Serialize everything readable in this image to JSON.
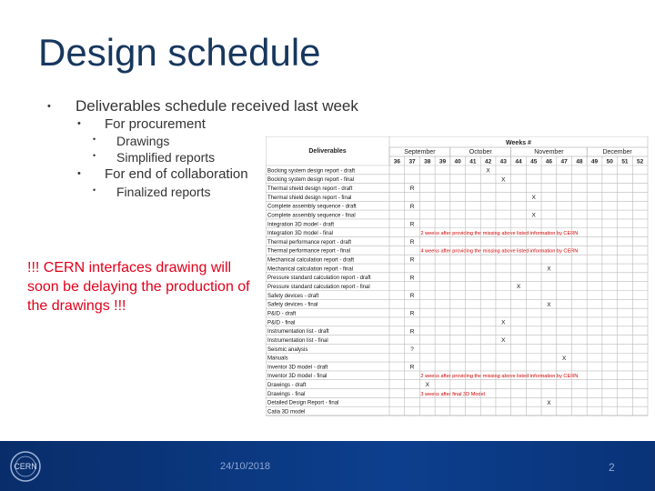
{
  "title": "Design schedule",
  "bullets": [
    {
      "text": "Deliverables schedule received last week",
      "children": [
        {
          "text": "For procurement",
          "children": [
            {
              "text": "Drawings"
            },
            {
              "text": "Simplified reports"
            }
          ]
        },
        {
          "text": "For end of collaboration",
          "children": [
            {
              "text": "Finalized reports"
            }
          ]
        }
      ]
    }
  ],
  "warning": "!!! CERN interfaces drawing will soon be delaying the production of the drawings !!!",
  "table": {
    "weeks_label": "Weeks #",
    "deliverables_label": "Deliverables",
    "months": [
      {
        "label": "September",
        "weeks": 4
      },
      {
        "label": "October",
        "weeks": 4
      },
      {
        "label": "November",
        "weeks": 5
      },
      {
        "label": "December",
        "weeks": 4
      }
    ],
    "weeks": [
      36,
      37,
      38,
      39,
      40,
      41,
      42,
      43,
      44,
      45,
      46,
      47,
      48,
      49,
      50,
      51,
      52
    ],
    "rows": [
      {
        "name": "Bocking system design report - draft",
        "mark": "X",
        "week": 42
      },
      {
        "name": "Bocking system design report - final",
        "mark": "X",
        "week": 43
      },
      {
        "name": "Thermal shield design report - draft",
        "mark": "R",
        "week": 37
      },
      {
        "name": "Thermal shield design report - final",
        "mark": "X",
        "week": 45
      },
      {
        "name": "Complete assembly sequence - draft",
        "mark": "R",
        "week": 37
      },
      {
        "name": "Complete assembly sequence - final",
        "mark": "X",
        "week": 45
      },
      {
        "name": "Integration 3D model - draft",
        "mark": "R",
        "week": 37
      },
      {
        "name": "Integration 3D model - final",
        "note": "2 weeks after providing the missing above listed information by CERN"
      },
      {
        "name": "Thermal performance report - draft",
        "mark": "R",
        "week": 37
      },
      {
        "name": "Thermal performance report - final",
        "note": "4 weeks after providing the missing above listed information by CERN"
      },
      {
        "name": "Mechanical calculation report - draft",
        "mark": "R",
        "week": 37
      },
      {
        "name": "Mechanical calculation report - final",
        "mark": "X",
        "week": 46
      },
      {
        "name": "Pressure standard calculation report - draft",
        "mark": "R",
        "week": 37
      },
      {
        "name": "Pressure standard calculation report - final",
        "mark": "X",
        "week": 44
      },
      {
        "name": "Safety devices - draft",
        "mark": "R",
        "week": 37
      },
      {
        "name": "Safety devices - final",
        "mark": "X",
        "week": 46
      },
      {
        "name": "P&ID - draft",
        "mark": "R",
        "week": 37
      },
      {
        "name": "P&ID - final",
        "mark": "X",
        "week": 43
      },
      {
        "name": "Instrumentation list - draft",
        "mark": "R",
        "week": 37
      },
      {
        "name": "Instrumentation list - final",
        "mark": "X",
        "week": 43
      },
      {
        "name": "Seismic analysis",
        "mark": "?",
        "week": 37
      },
      {
        "name": "Manuals",
        "mark": "X",
        "week": 47
      },
      {
        "name": "Inventor 3D model - draft",
        "mark": "R",
        "week": 37
      },
      {
        "name": "Inventor 3D model - final",
        "note": "2 weeks after providing the missing above listed information by CERN"
      },
      {
        "name": "Drawings - draft",
        "mark": "X",
        "week": 38
      },
      {
        "name": "Drawings - final",
        "note": "3 weeks after final 3D Model"
      },
      {
        "name": "Detailed Design Report - final",
        "mark": "X",
        "week": 46
      },
      {
        "name": "Catia 3D model"
      }
    ]
  },
  "footer": {
    "logo": "CERN",
    "date": "24/10/2018",
    "page": "2"
  }
}
